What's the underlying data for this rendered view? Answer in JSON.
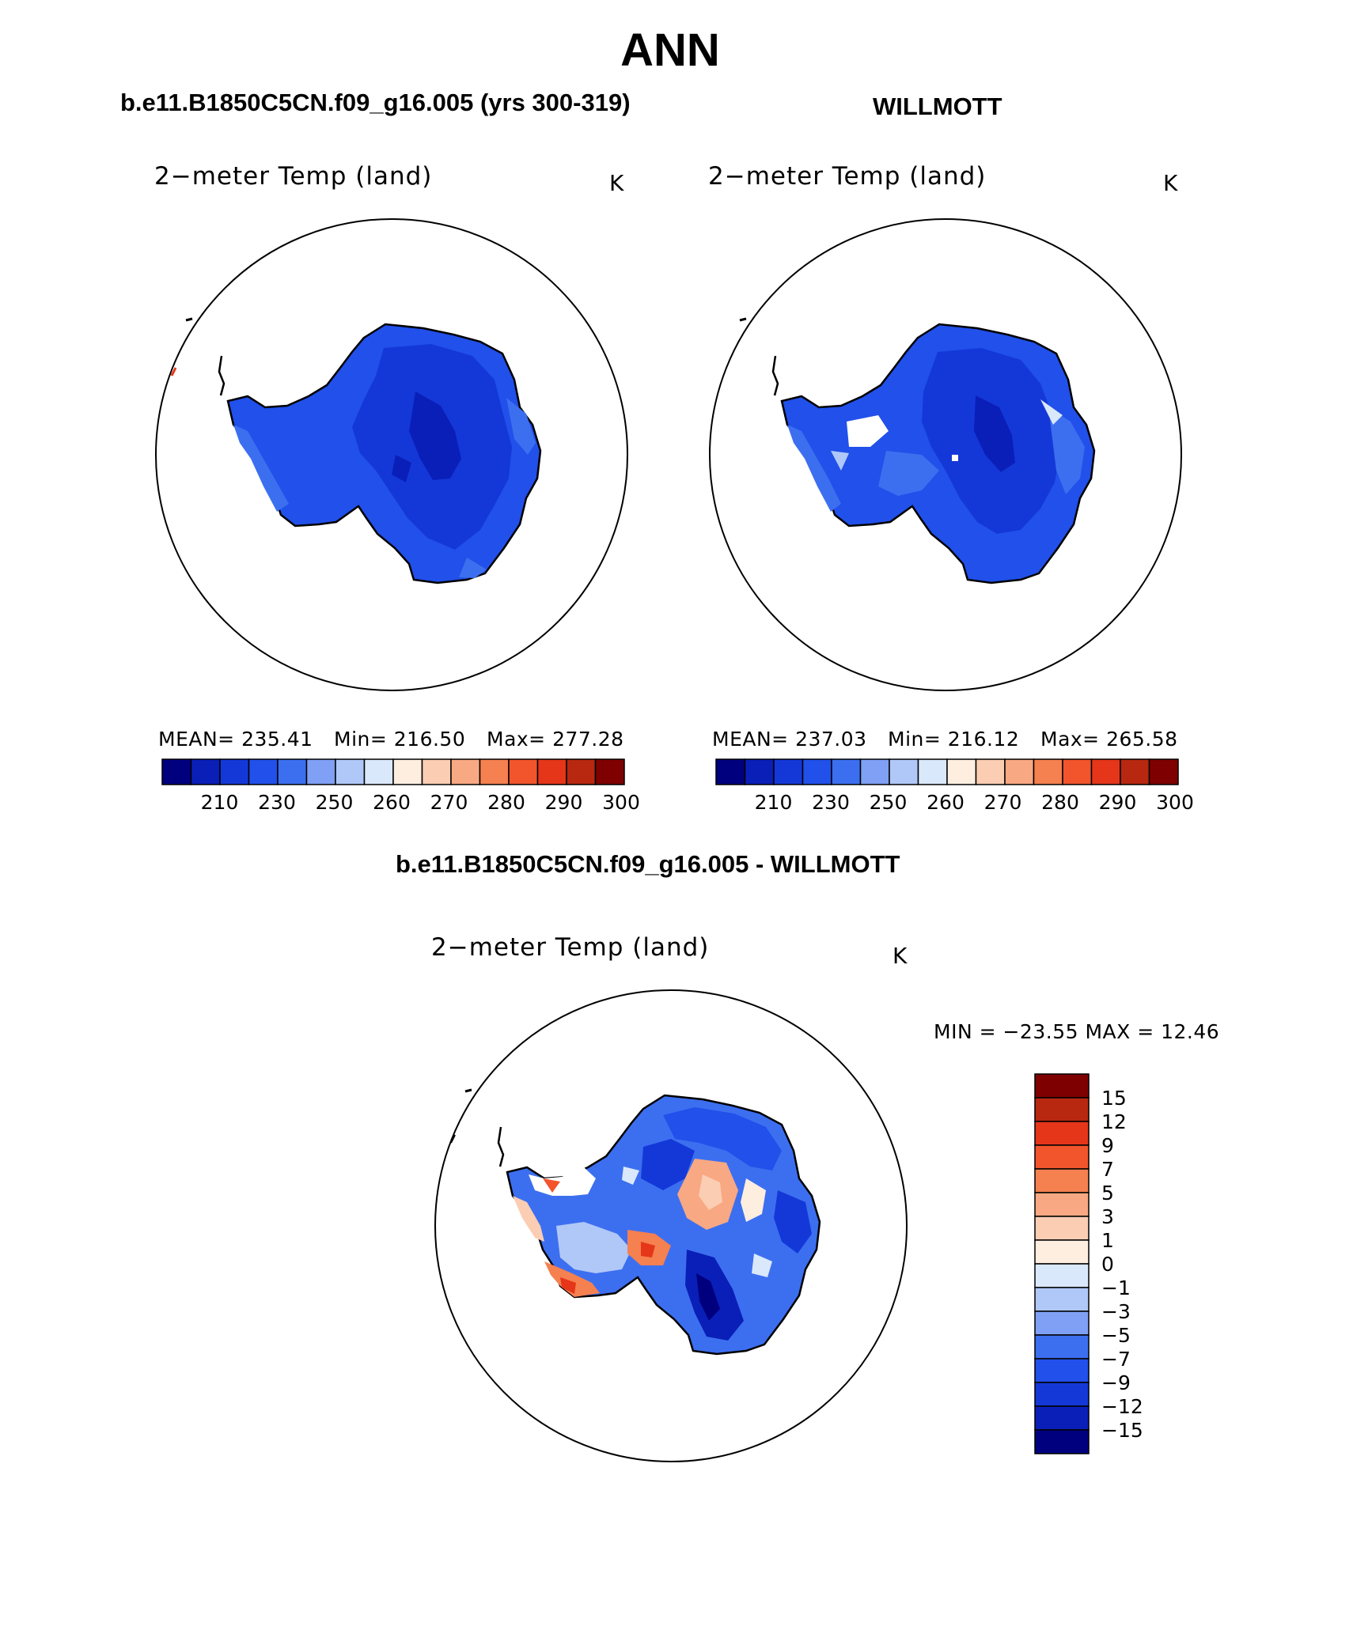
{
  "page": {
    "title": "ANN",
    "subtitle_left": "b.e11.B1850C5CN.f09_g16.005 (yrs 300-319)",
    "subtitle_right": "WILLMOTT",
    "subtitle_diff": "b.e11.B1850C5CN.f09_g16.005 - WILLMOTT"
  },
  "panels": [
    {
      "id": "model",
      "variable": "2−meter Temp (land)",
      "unit": "K",
      "stats": {
        "mean": "MEAN= 235.41",
        "min": "Min= 216.50",
        "max": "Max= 277.28"
      },
      "colorbar_ticks": [
        "210",
        "230",
        "250",
        "260",
        "270",
        "280",
        "290",
        "300"
      ]
    },
    {
      "id": "obs",
      "variable": "2−meter Temp (land)",
      "unit": "K",
      "stats": {
        "mean": "MEAN= 237.03",
        "min": "Min= 216.12",
        "max": "Max= 265.58"
      },
      "colorbar_ticks": [
        "210",
        "230",
        "250",
        "260",
        "270",
        "280",
        "290",
        "300"
      ]
    },
    {
      "id": "diff",
      "variable": "2−meter Temp (land)",
      "unit": "K",
      "minmax": "MIN = −23.55 MAX =   12.46",
      "colorbar_ticks": [
        "15",
        "12",
        "9",
        "7",
        "5",
        "3",
        "1",
        "0",
        "−1",
        "−3",
        "−5",
        "−7",
        "−9",
        "−12",
        "−15"
      ]
    }
  ],
  "colors": {
    "abs_scale": [
      "#00007f",
      "#0a1fb8",
      "#1438d8",
      "#2150ea",
      "#3c6ff0",
      "#7fa0f4",
      "#b0c8f8",
      "#dae8fb",
      "#fdeee0",
      "#fbcdb3",
      "#f8a882",
      "#f58050",
      "#f2552c",
      "#e5361a",
      "#b82810",
      "#7f0000"
    ],
    "diff_scale": [
      "#7f0000",
      "#b82810",
      "#e5361a",
      "#f2552c",
      "#f58050",
      "#f8a882",
      "#fbcdb3",
      "#fdeee0",
      "#dae8fb",
      "#b0c8f8",
      "#7fa0f4",
      "#3c6ff0",
      "#2150ea",
      "#1438d8",
      "#0a1fb8",
      "#00007f"
    ]
  }
}
